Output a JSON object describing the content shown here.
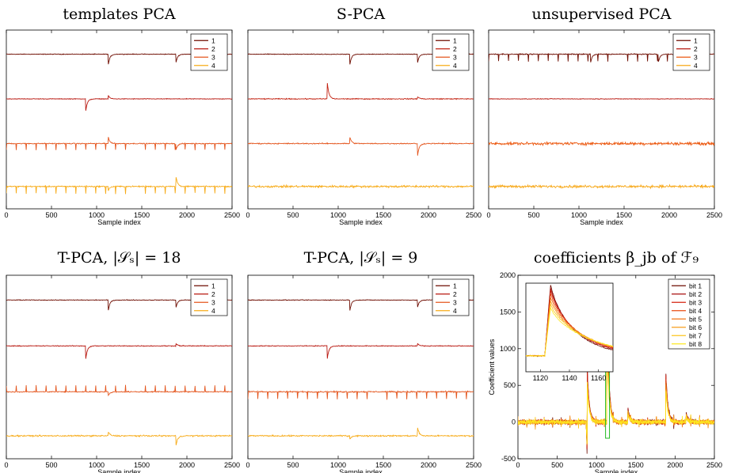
{
  "chart_data": [
    {
      "type": "line",
      "title": "templates PCA",
      "xlabel": "Sample index",
      "xlim": [
        0,
        2500
      ],
      "xticks": [
        0,
        500,
        1000,
        1500,
        2000,
        2500
      ],
      "yticks_shown": false,
      "legend": "top-right",
      "series": [
        {
          "name": "1",
          "color": "#6e0c00",
          "features": {
            "noise": 0.5,
            "spikes": [
              [
                1130,
                -1,
                13
              ],
              [
                1880,
                -1,
                10
              ]
            ],
            "train": null
          }
        },
        {
          "name": "2",
          "color": "#b8160e",
          "features": {
            "noise": 0.5,
            "spikes": [
              [
                880,
                -1,
                15
              ],
              [
                1130,
                1,
                4
              ]
            ],
            "train": null
          }
        },
        {
          "name": "3",
          "color": "#e4561e",
          "features": {
            "noise": 0.7,
            "spikes": [
              [
                1130,
                1,
                8
              ],
              [
                1880,
                -1,
                8
              ]
            ],
            "train": [
              110,
              -1,
              8
            ]
          }
        },
        {
          "name": "4",
          "color": "#f7ab18",
          "features": {
            "noise": 0.9,
            "spikes": [
              [
                1880,
                1,
                12
              ],
              [
                1130,
                -1,
                5
              ]
            ],
            "train": [
              110,
              -1,
              9
            ]
          }
        }
      ]
    },
    {
      "type": "line",
      "title": "S-PCA",
      "xlabel": "Sample index",
      "xlim": [
        0,
        2500
      ],
      "xticks": [
        0,
        500,
        1000,
        1500,
        2000,
        2500
      ],
      "yticks_shown": false,
      "legend": "top-right",
      "series": [
        {
          "name": "1",
          "color": "#6e0c00",
          "features": {
            "noise": 0.5,
            "spikes": [
              [
                1130,
                -1,
                13
              ],
              [
                1880,
                -1,
                10
              ]
            ],
            "train": null
          }
        },
        {
          "name": "2",
          "color": "#c2200f",
          "features": {
            "noise": 0.7,
            "spikes": [
              [
                880,
                1,
                20
              ],
              [
                1880,
                1,
                3
              ]
            ],
            "train": null
          }
        },
        {
          "name": "3",
          "color": "#e4561e",
          "features": {
            "noise": 0.8,
            "spikes": [
              [
                1130,
                1,
                8
              ],
              [
                1880,
                -1,
                15
              ]
            ],
            "train": null
          }
        },
        {
          "name": "4",
          "color": "#f7ab18",
          "features": {
            "noise": 1.6,
            "spikes": [],
            "train": null
          }
        }
      ]
    },
    {
      "type": "line",
      "title": "unsupervised PCA",
      "xlabel": "Sample index",
      "xlim": [
        0,
        2500
      ],
      "xticks": [
        0,
        500,
        1000,
        1500,
        2000,
        2500
      ],
      "yticks_shown": false,
      "legend": "top-right",
      "series": [
        {
          "name": "1",
          "color": "#6e0c00",
          "features": {
            "noise": 0.7,
            "spikes": [
              [
                1130,
                -1,
                10
              ],
              [
                1880,
                -1,
                10
              ]
            ],
            "train": [
              110,
              -1,
              9
            ]
          }
        },
        {
          "name": "2",
          "color": "#b8160e",
          "features": {
            "noise": 0.5,
            "spikes": [],
            "train": null
          }
        },
        {
          "name": "3",
          "color": "#ec5a12",
          "features": {
            "noise": 2.2,
            "spikes": [],
            "train": null
          }
        },
        {
          "name": "4",
          "color": "#f7a818",
          "features": {
            "noise": 2.0,
            "spikes": [],
            "train": null
          }
        }
      ]
    },
    {
      "type": "line",
      "title": "T-PCA, |𝒮ₛ| = 18",
      "xlabel": "Sample index",
      "xlim": [
        0,
        2500
      ],
      "xticks": [
        0,
        500,
        1000,
        1500,
        2000,
        2500
      ],
      "yticks_shown": false,
      "legend": "top-right",
      "series": [
        {
          "name": "1",
          "color": "#6e0c00",
          "features": {
            "noise": 0.5,
            "spikes": [
              [
                1130,
                -1,
                13
              ],
              [
                1880,
                -1,
                9
              ]
            ],
            "train": null
          }
        },
        {
          "name": "2",
          "color": "#b8160e",
          "features": {
            "noise": 0.6,
            "spikes": [
              [
                880,
                -1,
                16
              ],
              [
                1880,
                1,
                3
              ]
            ],
            "train": null
          }
        },
        {
          "name": "3",
          "color": "#e4561e",
          "features": {
            "noise": 0.8,
            "spikes": [
              [
                1130,
                -1,
                5
              ]
            ],
            "train": [
              110,
              1,
              8
            ]
          }
        },
        {
          "name": "4",
          "color": "#f7ab18",
          "features": {
            "noise": 1.0,
            "spikes": [
              [
                1130,
                1,
                5
              ],
              [
                1880,
                -1,
                12
              ]
            ],
            "train": null
          }
        }
      ]
    },
    {
      "type": "line",
      "title": "T-PCA, |𝒮ₛ| = 9",
      "xlabel": "Sample index",
      "xlim": [
        0,
        2500
      ],
      "xticks": [
        0,
        500,
        1000,
        1500,
        2000,
        2500
      ],
      "yticks_shown": false,
      "legend": "top-right",
      "series": [
        {
          "name": "1",
          "color": "#6e0c00",
          "features": {
            "noise": 0.5,
            "spikes": [
              [
                1130,
                -1,
                13
              ],
              [
                1880,
                -1,
                9
              ]
            ],
            "train": null
          }
        },
        {
          "name": "2",
          "color": "#b8160e",
          "features": {
            "noise": 0.6,
            "spikes": [
              [
                880,
                -1,
                16
              ],
              [
                1880,
                1,
                3
              ]
            ],
            "train": null
          }
        },
        {
          "name": "3",
          "color": "#e4561e",
          "features": {
            "noise": 1.0,
            "spikes": [],
            "train": [
              110,
              -1,
              9
            ]
          }
        },
        {
          "name": "4",
          "color": "#f7ab18",
          "features": {
            "noise": 1.0,
            "spikes": [
              [
                1880,
                1,
                10
              ],
              [
                1130,
                -1,
                4
              ]
            ],
            "train": null
          }
        }
      ]
    },
    {
      "type": "line",
      "title": "coefficients β_jb of ℱ₉",
      "xlabel": "Sample index",
      "ylabel": "Coefficient values",
      "xlim": [
        0,
        2500
      ],
      "ylim": [
        -500,
        2000
      ],
      "xticks": [
        0,
        500,
        1000,
        1500,
        2000,
        2500
      ],
      "yticks": [
        -500,
        0,
        500,
        1000,
        1500,
        2000
      ],
      "legend": "top-right",
      "series": [
        {
          "name": "bit 1",
          "color": "#6e0c00"
        },
        {
          "name": "bit 2",
          "color": "#a80e0e"
        },
        {
          "name": "bit 3",
          "color": "#d4220f"
        },
        {
          "name": "bit 4",
          "color": "#ea4b12"
        },
        {
          "name": "bit 5",
          "color": "#f37418"
        },
        {
          "name": "bit 6",
          "color": "#f89e1c"
        },
        {
          "name": "bit 7",
          "color": "#fbc51e"
        },
        {
          "name": "bit 8",
          "color": "#fde820"
        }
      ],
      "events": [
        {
          "x": 880,
          "peak": 800,
          "kind": "up-down",
          "low": -450
        },
        {
          "x": 1130,
          "peak": 1800,
          "kind": "up"
        },
        {
          "x": 1400,
          "peak": 180,
          "kind": "up"
        },
        {
          "x": 1880,
          "peak": 760,
          "kind": "up"
        },
        {
          "x": 2140,
          "peak": 120,
          "kind": "up"
        }
      ],
      "highlight_box": {
        "x0": 1115,
        "x1": 1165,
        "y0": -220,
        "y1": 2000,
        "color": "#22bb22"
      },
      "inset": {
        "xlim": [
          1110,
          1170
        ],
        "xticks": [
          1120,
          1140,
          1160
        ],
        "peak_x": 1127,
        "baseline": 0.18,
        "peaks": [
          0.98,
          0.95,
          0.92,
          0.88,
          0.84,
          0.8,
          0.76,
          0.72
        ]
      }
    }
  ]
}
